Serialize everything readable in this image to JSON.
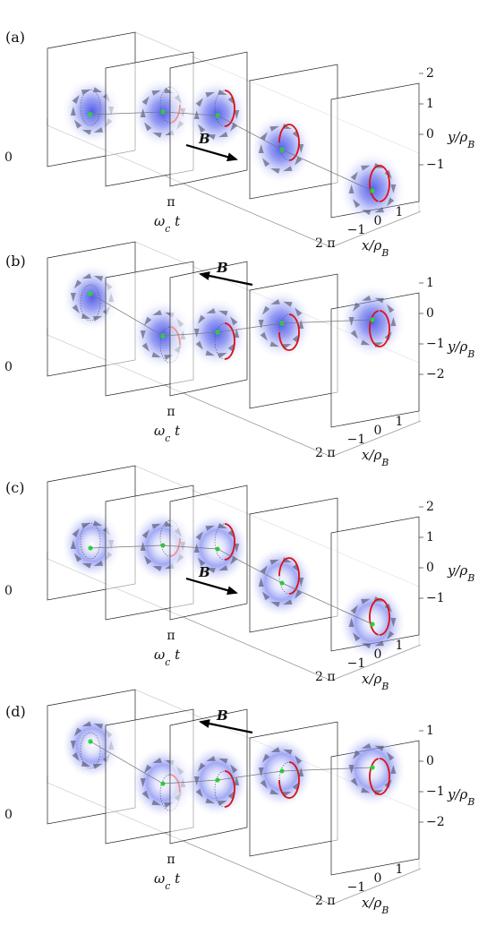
{
  "panels": [
    {
      "label": "(a)",
      "field_label": "B",
      "field_direction": "right",
      "y_ticks": [
        "2",
        "1",
        "0",
        "−1"
      ],
      "x_ticks": [
        "−1",
        "0",
        "1"
      ],
      "time_ticks": [
        "0",
        "π",
        "2 π"
      ]
    },
    {
      "label": "(b)",
      "field_label": "B",
      "field_direction": "left",
      "y_ticks": [
        "1",
        "0",
        "−1",
        "−2"
      ],
      "x_ticks": [
        "−1",
        "0",
        "1"
      ],
      "time_ticks": [
        "0",
        "π",
        "2 π"
      ]
    },
    {
      "label": "(c)",
      "field_label": "B",
      "field_direction": "right",
      "y_ticks": [
        "2",
        "1",
        "0",
        "−1"
      ],
      "x_ticks": [
        "−1",
        "0",
        "1"
      ],
      "time_ticks": [
        "0",
        "π",
        "2 π"
      ]
    },
    {
      "label": "(d)",
      "field_label": "B",
      "field_direction": "left",
      "y_ticks": [
        "1",
        "0",
        "−1",
        "−2"
      ],
      "x_ticks": [
        "−1",
        "0",
        "1"
      ],
      "time_ticks": [
        "0",
        "π",
        "2 π"
      ]
    }
  ],
  "axes": {
    "time_label": "ω_c t",
    "x_label": "x/ρ_B",
    "y_label": "y/ρ_B"
  },
  "colors": {
    "density": "#4a55e6",
    "orbit": "#dd1111",
    "center": "#22dd33",
    "arrows": "#3a3f55"
  }
}
